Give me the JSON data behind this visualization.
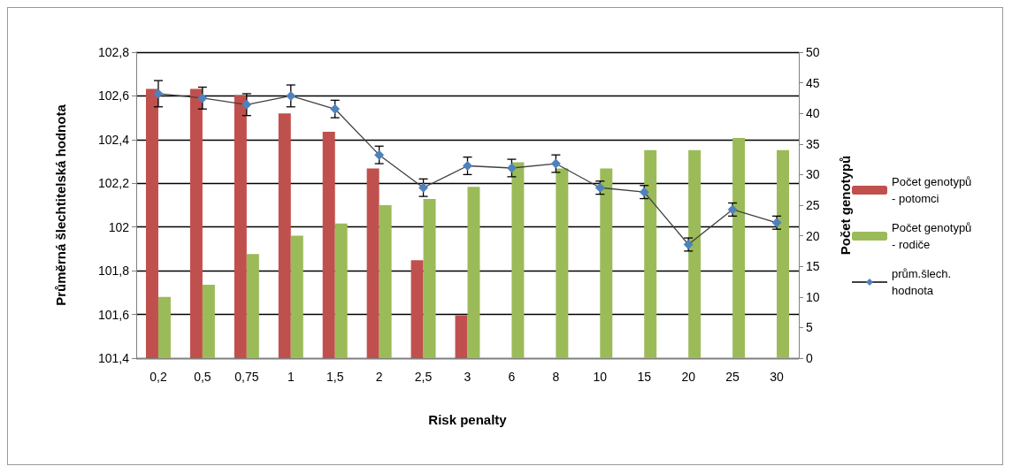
{
  "chart_data": {
    "type": "bar",
    "xlabel": "Risk penalty",
    "ylabel": "Průměrná šlechtitelská hodnota",
    "y2label": "Počet genotypů",
    "categories": [
      "0,2",
      "0,5",
      "0,75",
      "1",
      "1,5",
      "2",
      "2,5",
      "3",
      "6",
      "8",
      "10",
      "15",
      "20",
      "25",
      "30"
    ],
    "series": [
      {
        "name": "Počet genotypů - potomci",
        "color": "#c0504d",
        "axis": "y2",
        "values": [
          44,
          44,
          43,
          40,
          37,
          31,
          16,
          7,
          null,
          null,
          null,
          null,
          null,
          null,
          null
        ]
      },
      {
        "name": "Počet genotypů - rodiče",
        "color": "#9bbb59",
        "axis": "y2",
        "values": [
          10,
          12,
          17,
          20,
          22,
          25,
          26,
          28,
          32,
          31,
          31,
          34,
          34,
          36,
          34
        ]
      },
      {
        "name": "prům.šlech. hodnota",
        "type": "line",
        "color": "#4f81bd",
        "marker": "diamond",
        "values": [
          102.61,
          102.59,
          102.56,
          102.6,
          102.54,
          102.33,
          102.18,
          102.28,
          102.27,
          102.29,
          102.18,
          102.16,
          101.92,
          102.08,
          102.02
        ],
        "errors": [
          0.06,
          0.05,
          0.05,
          0.05,
          0.04,
          0.04,
          0.04,
          0.04,
          0.04,
          0.04,
          0.03,
          0.03,
          0.03,
          0.03,
          0.03
        ]
      }
    ],
    "ylim": [
      101.4,
      102.8
    ],
    "yticks": [
      {
        "value": 101.4,
        "label": "101,4"
      },
      {
        "value": 101.6,
        "label": "101,6"
      },
      {
        "value": 101.8,
        "label": "101,8"
      },
      {
        "value": 102,
        "label": "102"
      },
      {
        "value": 102.2,
        "label": "102,2"
      },
      {
        "value": 102.4,
        "label": "102,4"
      },
      {
        "value": 102.6,
        "label": "102,6"
      },
      {
        "value": 102.8,
        "label": "102,8"
      }
    ],
    "y2lim": [
      0,
      50
    ],
    "y2ticks": [
      0,
      5,
      10,
      15,
      20,
      25,
      30,
      35,
      40,
      45,
      50
    ],
    "grid": "y",
    "legend": "right"
  }
}
